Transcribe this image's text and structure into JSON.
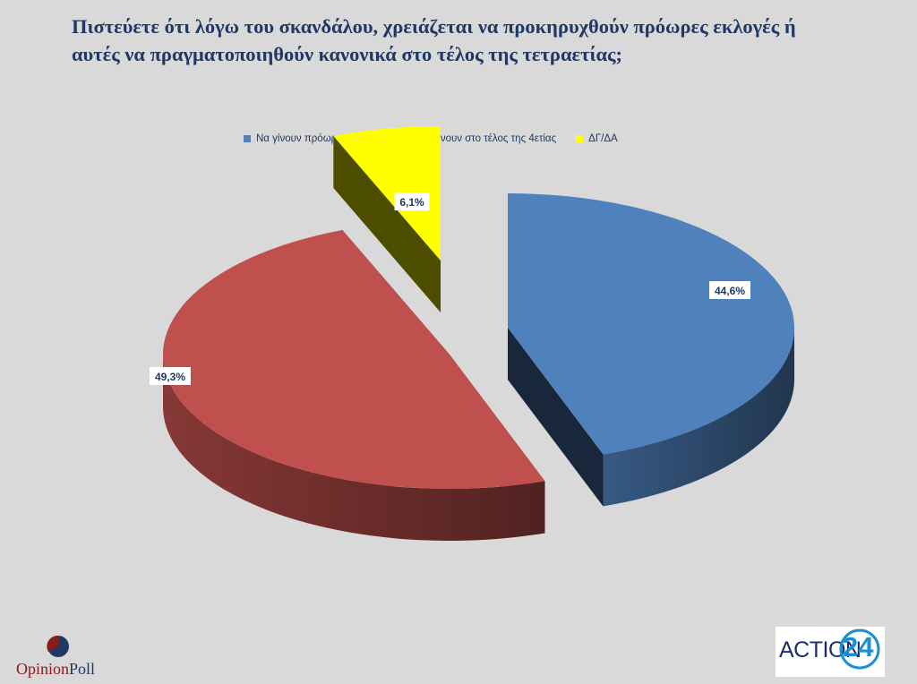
{
  "title_line1": "Πιστεύετε ότι λόγω του σκανδάλου, χρειάζεται να προκηρυχθούν πρόωρες εκλογές ή",
  "title_line2": "αυτές να πραγματοποιηθούν κανονικά στο τέλος της τετραετίας;",
  "chart_data": {
    "type": "pie",
    "title": "",
    "series": [
      {
        "name": "Να γίνουν πρόωρες εκλογές",
        "value": 44.6,
        "label": "44,6%",
        "color": "#4f81bd"
      },
      {
        "name": "Να γίνουν στο τέλος της 4ετίας",
        "value": 49.3,
        "label": "49,3%",
        "color": "#c0504d"
      },
      {
        "name": "ΔΓ/ΔΑ",
        "value": 6.1,
        "label": "6,1%",
        "color": "#ffff00"
      }
    ],
    "legend_position": "top",
    "style": "3d-exploded"
  },
  "logos": {
    "left_brand_a": "Opinion",
    "left_brand_b": "Poll",
    "right_brand_text": "ACTION",
    "right_brand_number": "24"
  }
}
